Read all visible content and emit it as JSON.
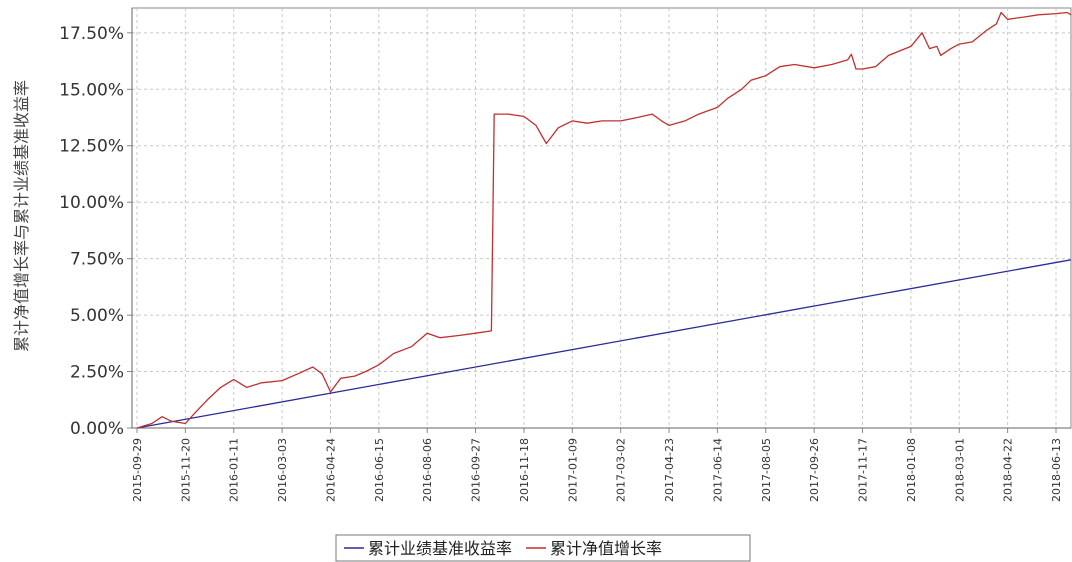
{
  "chart_data": {
    "type": "line",
    "title": "",
    "xlabel": "",
    "ylabel": "累计净值增长率与累计业绩基准收益率",
    "ylim": [
      0,
      18.6
    ],
    "grid": true,
    "legend_position": "bottom",
    "x_tick_labels": [
      "2015-09-29",
      "2015-11-20",
      "2016-01-11",
      "2016-03-03",
      "2016-04-24",
      "2016-06-15",
      "2016-08-06",
      "2016-09-27",
      "2016-11-18",
      "2017-01-09",
      "2017-03-02",
      "2017-04-23",
      "2017-06-14",
      "2017-08-05",
      "2017-09-26",
      "2017-11-17",
      "2018-01-08",
      "2018-03-01",
      "2018-04-22",
      "2018-06-13"
    ],
    "y_tick_labels": [
      "0.00%",
      "2.50%",
      "5.00%",
      "7.50%",
      "10.00%",
      "12.50%",
      "15.00%",
      "17.50%"
    ],
    "y_ticks": [
      0,
      2.5,
      5,
      7.5,
      10,
      12.5,
      15,
      17.5
    ],
    "series": [
      {
        "name": "累计业绩基准收益率",
        "color": "#2b2b9a",
        "points": [
          [
            "2015-09-29",
            0.0
          ],
          [
            "2018-06-29",
            7.45
          ]
        ]
      },
      {
        "name": "累计净值增长率",
        "color": "#c03030",
        "points": [
          [
            "2015-09-29",
            0.0
          ],
          [
            "2015-10-15",
            0.2
          ],
          [
            "2015-10-26",
            0.5
          ],
          [
            "2015-11-05",
            0.3
          ],
          [
            "2015-11-20",
            0.2
          ],
          [
            "2015-12-01",
            0.7
          ],
          [
            "2015-12-15",
            1.3
          ],
          [
            "2015-12-28",
            1.8
          ],
          [
            "2016-01-11",
            2.15
          ],
          [
            "2016-01-25",
            1.8
          ],
          [
            "2016-02-10",
            2.0
          ],
          [
            "2016-03-03",
            2.1
          ],
          [
            "2016-03-20",
            2.4
          ],
          [
            "2016-04-05",
            2.7
          ],
          [
            "2016-04-15",
            2.4
          ],
          [
            "2016-04-24",
            1.6
          ],
          [
            "2016-05-05",
            2.2
          ],
          [
            "2016-05-20",
            2.3
          ],
          [
            "2016-06-01",
            2.5
          ],
          [
            "2016-06-15",
            2.8
          ],
          [
            "2016-07-01",
            3.3
          ],
          [
            "2016-07-20",
            3.6
          ],
          [
            "2016-08-06",
            4.2
          ],
          [
            "2016-08-20",
            4.0
          ],
          [
            "2016-09-10",
            4.1
          ],
          [
            "2016-09-27",
            4.2
          ],
          [
            "2016-10-14",
            4.3
          ],
          [
            "2016-10-17",
            13.9
          ],
          [
            "2016-11-01",
            13.9
          ],
          [
            "2016-11-18",
            13.8
          ],
          [
            "2016-12-01",
            13.4
          ],
          [
            "2016-12-12",
            12.6
          ],
          [
            "2016-12-25",
            13.3
          ],
          [
            "2017-01-09",
            13.6
          ],
          [
            "2017-01-25",
            13.5
          ],
          [
            "2017-02-10",
            13.6
          ],
          [
            "2017-03-02",
            13.6
          ],
          [
            "2017-03-20",
            13.75
          ],
          [
            "2017-04-05",
            13.9
          ],
          [
            "2017-04-15",
            13.6
          ],
          [
            "2017-04-23",
            13.4
          ],
          [
            "2017-05-10",
            13.6
          ],
          [
            "2017-05-25",
            13.9
          ],
          [
            "2017-06-14",
            14.2
          ],
          [
            "2017-06-25",
            14.6
          ],
          [
            "2017-07-10",
            15.0
          ],
          [
            "2017-07-20",
            15.4
          ],
          [
            "2017-08-05",
            15.6
          ],
          [
            "2017-08-20",
            16.0
          ],
          [
            "2017-09-05",
            16.1
          ],
          [
            "2017-09-26",
            15.95
          ],
          [
            "2017-10-15",
            16.1
          ],
          [
            "2017-11-01",
            16.3
          ],
          [
            "2017-11-05",
            16.55
          ],
          [
            "2017-11-10",
            15.9
          ],
          [
            "2017-11-17",
            15.9
          ],
          [
            "2017-12-01",
            16.0
          ],
          [
            "2017-12-15",
            16.5
          ],
          [
            "2018-01-08",
            16.9
          ],
          [
            "2018-01-20",
            17.5
          ],
          [
            "2018-01-28",
            16.8
          ],
          [
            "2018-02-05",
            16.9
          ],
          [
            "2018-02-09",
            16.5
          ],
          [
            "2018-02-20",
            16.8
          ],
          [
            "2018-03-01",
            17.0
          ],
          [
            "2018-03-15",
            17.1
          ],
          [
            "2018-03-30",
            17.6
          ],
          [
            "2018-04-10",
            17.9
          ],
          [
            "2018-04-15",
            18.4
          ],
          [
            "2018-04-22",
            18.1
          ],
          [
            "2018-05-10",
            18.2
          ],
          [
            "2018-05-25",
            18.3
          ],
          [
            "2018-06-13",
            18.35
          ],
          [
            "2018-06-25",
            18.4
          ],
          [
            "2018-06-29",
            18.3
          ]
        ]
      }
    ]
  }
}
